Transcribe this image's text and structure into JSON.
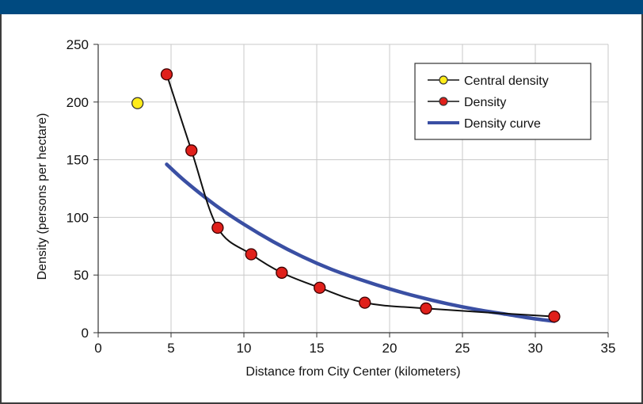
{
  "colors": {
    "header": "#004a80",
    "central_marker": "#ffec1a",
    "density_marker": "#e0201b",
    "density_line": "#111111",
    "curve": "#3a4fa3",
    "grid": "#c9c9c9"
  },
  "chart_data": {
    "type": "scatter",
    "title": "",
    "xlabel": "Distance from City Center (kilometers)",
    "ylabel": "Density (persons per hectare)",
    "xlim": [
      0,
      35
    ],
    "ylim": [
      0,
      250
    ],
    "x_ticks": [
      0,
      5,
      10,
      15,
      20,
      25,
      30,
      35
    ],
    "y_ticks": [
      0,
      50,
      100,
      150,
      200,
      250
    ],
    "grid": true,
    "legend_position": "top-right",
    "series": [
      {
        "name": "Central density",
        "kind": "marker",
        "color": "#ffec1a",
        "points": [
          [
            2.7,
            199
          ]
        ]
      },
      {
        "name": "Density",
        "kind": "line+marker",
        "color": "#e0201b",
        "points": [
          [
            4.7,
            224
          ],
          [
            6.4,
            158
          ],
          [
            8.2,
            91
          ],
          [
            10.5,
            68
          ],
          [
            12.6,
            52
          ],
          [
            15.2,
            39
          ],
          [
            18.3,
            26
          ],
          [
            22.5,
            21
          ],
          [
            31.3,
            14
          ]
        ]
      },
      {
        "name": "Density curve",
        "kind": "line",
        "color": "#3a4fa3",
        "points": [
          [
            4.7,
            146
          ],
          [
            6,
            131
          ],
          [
            8,
            111
          ],
          [
            10,
            94
          ],
          [
            12,
            79
          ],
          [
            14,
            66
          ],
          [
            16,
            55
          ],
          [
            18,
            46
          ],
          [
            20,
            38
          ],
          [
            22,
            31
          ],
          [
            24,
            25
          ],
          [
            26,
            20
          ],
          [
            28,
            16
          ],
          [
            30,
            12
          ],
          [
            31.3,
            10
          ]
        ]
      }
    ]
  }
}
